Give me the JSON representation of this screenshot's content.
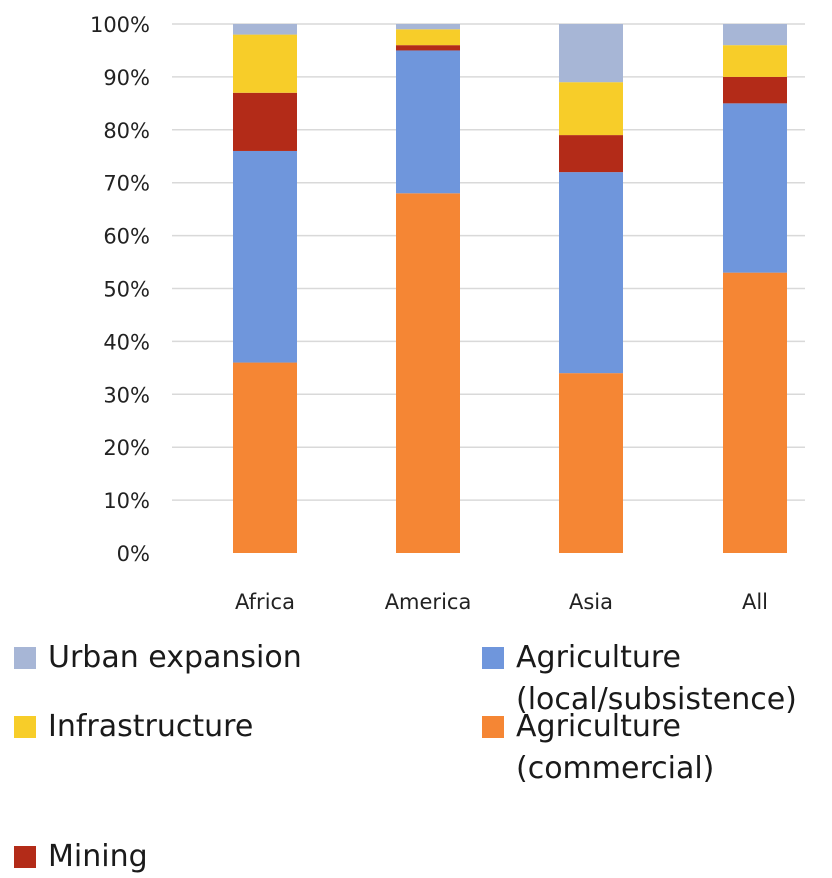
{
  "chart_data": {
    "type": "bar",
    "stacked": true,
    "categories": [
      "Africa",
      "America",
      "Asia",
      "All"
    ],
    "series": [
      {
        "name": "Agriculture (commercial)",
        "color": "#f58634",
        "values": [
          36,
          68,
          34,
          53
        ]
      },
      {
        "name": "Agriculture (local/subsistence)",
        "color": "#6f96dc",
        "values": [
          40,
          27,
          38,
          32
        ]
      },
      {
        "name": "Mining",
        "color": "#b32b18",
        "values": [
          11,
          1,
          7,
          5
        ]
      },
      {
        "name": "Infrastructure",
        "color": "#f7cd29",
        "values": [
          11,
          3,
          10,
          6
        ]
      },
      {
        "name": "Urban expansion",
        "color": "#a7b6d6",
        "values": [
          2,
          1,
          11,
          4
        ]
      }
    ],
    "yticks": [
      "0%",
      "10%",
      "20%",
      "30%",
      "40%",
      "50%",
      "60%",
      "70%",
      "80%",
      "90%",
      "100%"
    ],
    "ylim": [
      0,
      100
    ],
    "grid": true,
    "legend_position": "bottom"
  },
  "legend": {
    "urban": {
      "label": "Urban expansion",
      "color": "#a7b6d6"
    },
    "infrastructure": {
      "label": "Infrastructure",
      "color": "#f7cd29"
    },
    "mining": {
      "label": "Mining",
      "color": "#b32b18"
    },
    "agri_local": {
      "line1": "Agriculture",
      "line2": "(local/subsistence)",
      "color": "#6f96dc"
    },
    "agri_commercial": {
      "line1": "Agriculture",
      "line2": "(commercial)",
      "color": "#f58634"
    }
  }
}
